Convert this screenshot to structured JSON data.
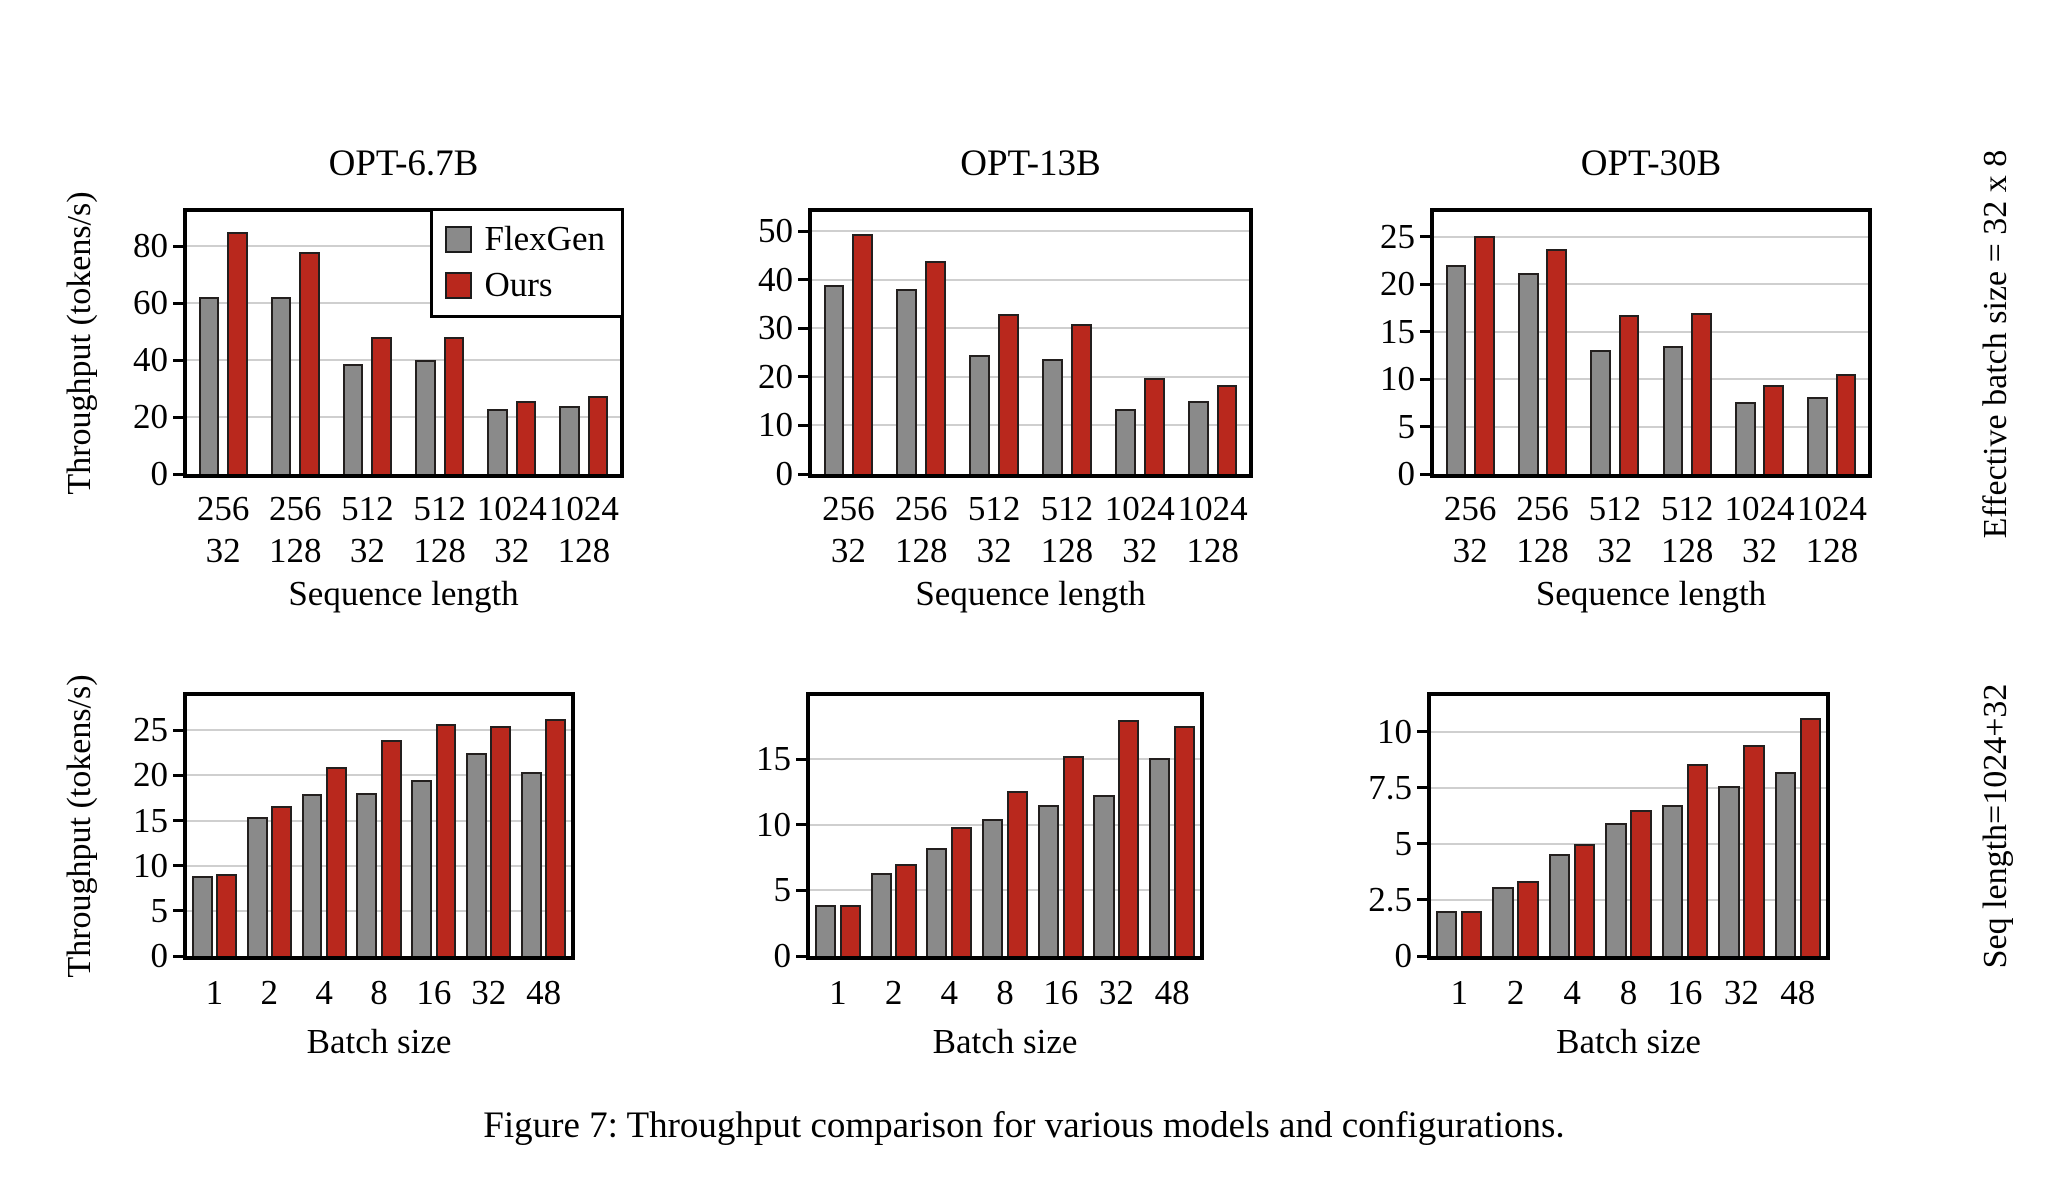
{
  "figure": {
    "caption": "Figure 7: Throughput comparison for various models and configurations.",
    "ylabel": "Throughput (tokens/s)",
    "row_labels": [
      "Effective batch size = 32 x 8",
      "Seq length=1024+32"
    ]
  },
  "legend": {
    "items": [
      {
        "label": "FlexGen",
        "color": "#8a8a8a"
      },
      {
        "label": "Ours",
        "color": "#b9281d"
      }
    ]
  },
  "chart_data": [
    {
      "id": "opt67b-sequence",
      "type": "bar",
      "title": "OPT-6.7B",
      "row": 0,
      "col": 0,
      "xlabel": "Sequence length",
      "categories": [
        [
          "256",
          "32"
        ],
        [
          "256",
          "128"
        ],
        [
          "512",
          "32"
        ],
        [
          "512",
          "128"
        ],
        [
          "1024",
          "32"
        ],
        [
          "1024",
          "128"
        ]
      ],
      "yticks": [
        0,
        20,
        40,
        60,
        80
      ],
      "ylim": [
        0,
        92
      ],
      "grid": true,
      "legend_position": "upper right",
      "show_legend": true,
      "series": [
        {
          "name": "FlexGen",
          "values": [
            62,
            62,
            38.5,
            40,
            23,
            24
          ]
        },
        {
          "name": "Ours",
          "values": [
            85,
            78,
            48,
            48,
            25.5,
            27.5
          ]
        }
      ]
    },
    {
      "id": "opt13b-sequence",
      "type": "bar",
      "title": "OPT-13B",
      "row": 0,
      "col": 1,
      "xlabel": "Sequence length",
      "categories": [
        [
          "256",
          "32"
        ],
        [
          "256",
          "128"
        ],
        [
          "512",
          "32"
        ],
        [
          "512",
          "128"
        ],
        [
          "1024",
          "32"
        ],
        [
          "1024",
          "128"
        ]
      ],
      "yticks": [
        0,
        10,
        20,
        30,
        40,
        50
      ],
      "ylim": [
        0,
        54
      ],
      "grid": true,
      "show_legend": false,
      "series": [
        {
          "name": "FlexGen",
          "values": [
            39,
            38.2,
            24.5,
            23.7,
            13.5,
            15
          ]
        },
        {
          "name": "Ours",
          "values": [
            49.5,
            44,
            33,
            31,
            19.8,
            18.3
          ]
        }
      ]
    },
    {
      "id": "opt30b-sequence",
      "type": "bar",
      "title": "OPT-30B",
      "row": 0,
      "col": 2,
      "xlabel": "Sequence length",
      "categories": [
        [
          "256",
          "32"
        ],
        [
          "256",
          "128"
        ],
        [
          "512",
          "32"
        ],
        [
          "512",
          "128"
        ],
        [
          "1024",
          "32"
        ],
        [
          "1024",
          "128"
        ]
      ],
      "yticks": [
        0,
        5,
        10,
        15,
        20,
        25
      ],
      "ylim": [
        0,
        27.6
      ],
      "grid": true,
      "show_legend": false,
      "series": [
        {
          "name": "FlexGen",
          "values": [
            22,
            21.2,
            13.1,
            13.5,
            7.6,
            8.1
          ]
        },
        {
          "name": "Ours",
          "values": [
            25.1,
            23.7,
            16.8,
            17,
            9.4,
            10.5
          ]
        }
      ]
    },
    {
      "id": "opt67b-batch",
      "type": "bar",
      "title": "",
      "row": 1,
      "col": 0,
      "xlabel": "Batch size",
      "categories": [
        "1",
        "2",
        "4",
        "8",
        "16",
        "32",
        "48"
      ],
      "yticks": [
        0,
        5,
        10,
        15,
        20,
        25
      ],
      "ylim": [
        0,
        28.8
      ],
      "grid": true,
      "show_legend": false,
      "series": [
        {
          "name": "FlexGen",
          "values": [
            8.9,
            15.4,
            17.9,
            18.1,
            19.5,
            22.5,
            20.4
          ]
        },
        {
          "name": "Ours",
          "values": [
            9.1,
            16.6,
            20.9,
            23.9,
            25.7,
            25.5,
            26.2
          ]
        }
      ]
    },
    {
      "id": "opt13b-batch",
      "type": "bar",
      "title": "",
      "row": 1,
      "col": 1,
      "xlabel": "Batch size",
      "categories": [
        "1",
        "2",
        "4",
        "8",
        "16",
        "32",
        "48"
      ],
      "yticks": [
        0,
        5,
        10,
        15
      ],
      "ylim": [
        0,
        19.8
      ],
      "grid": true,
      "show_legend": false,
      "series": [
        {
          "name": "FlexGen",
          "values": [
            3.9,
            6.3,
            8.2,
            10.4,
            11.5,
            12.3,
            15.1
          ]
        },
        {
          "name": "Ours",
          "values": [
            3.9,
            7,
            9.8,
            12.6,
            15.2,
            18,
            17.5
          ]
        }
      ]
    },
    {
      "id": "opt30b-batch",
      "type": "bar",
      "title": "",
      "row": 1,
      "col": 2,
      "xlabel": "Batch size",
      "categories": [
        "1",
        "2",
        "4",
        "8",
        "16",
        "32",
        "48"
      ],
      "yticks": [
        0,
        2.5,
        5,
        7.5,
        10
      ],
      "ylim": [
        0,
        11.6
      ],
      "grid": true,
      "show_legend": false,
      "series": [
        {
          "name": "FlexGen",
          "values": [
            2,
            3.1,
            4.55,
            5.95,
            6.75,
            7.6,
            8.2
          ]
        },
        {
          "name": "Ours",
          "values": [
            2,
            3.35,
            5,
            6.5,
            8.55,
            9.4,
            10.6
          ]
        }
      ]
    }
  ]
}
